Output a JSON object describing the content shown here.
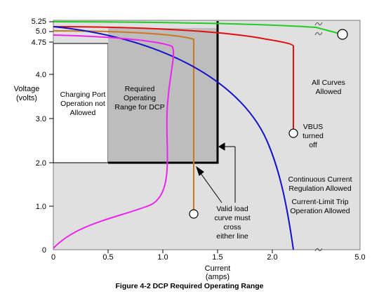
{
  "figure": {
    "caption": "Figure 4-2  DCP Required Operating Range",
    "y_axis_label_line1": "Voltage",
    "y_axis_label_line2": "(volts)",
    "x_axis_label_line1": "Current",
    "x_axis_label_line2": "(amps)",
    "y_ticks": [
      "5.25",
      "5.0",
      "4.75",
      "4.0",
      "3.0",
      "2.0",
      "1.0",
      "0"
    ],
    "x_ticks": [
      "0",
      "0.5",
      "1.0",
      "1.5",
      "2.0",
      "5.0"
    ],
    "regions": {
      "not_allowed_line1": "Charging Port",
      "not_allowed_line2": "Operation not",
      "not_allowed_line3": "Allowed",
      "required_line1": "Required",
      "required_line2": "Operating",
      "required_line3": "Range for DCP",
      "all_curves_line1": "All Curves",
      "all_curves_line2": "Allowed"
    },
    "annotations": {
      "vbus_line1": "VBUS",
      "vbus_line2": "turned",
      "vbus_line3": "off",
      "continuous_line1": "Continuous Current",
      "continuous_line2": "Regulation Allowed",
      "current_limit_line1": "Current-Limit Trip",
      "current_limit_line2": "Operation Allowed",
      "valid_line1": "Valid load",
      "valid_line2": "curve must",
      "valid_line3": "cross",
      "valid_line4": "either line"
    },
    "colors": {
      "plot_background": "#e0e0e0",
      "required_region": "#bdbdbd",
      "green_curve": "#22cc22",
      "red_curve": "#e01010",
      "orange_curve": "#cc7722",
      "blue_curve": "#1111cc",
      "magenta_curve": "#ee22ee",
      "boundary": "#000000"
    }
  }
}
